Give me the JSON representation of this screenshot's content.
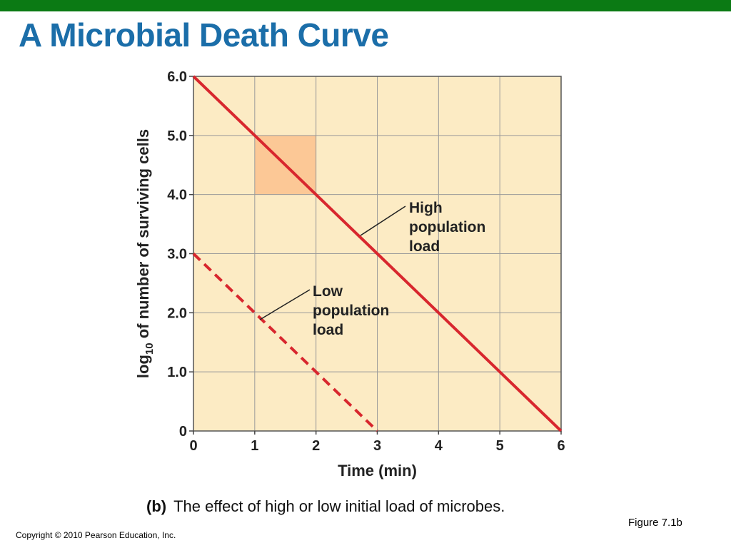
{
  "slide": {
    "title": "A Microbial Death Curve",
    "figure_label": "Figure 7.1b",
    "copyright": "Copyright © 2010 Pearson Education, Inc.",
    "accent_color": "#0b7a14",
    "title_color": "#1b6ea9"
  },
  "chart_data": {
    "type": "line",
    "xlabel": "Time (min)",
    "ylabel_prefix": "log",
    "ylabel_subscript": "10",
    "ylabel_rest": " of number of surviving cells",
    "xlim": [
      0,
      6
    ],
    "ylim": [
      0,
      6
    ],
    "x_ticks": [
      0,
      1,
      2,
      3,
      4,
      5,
      6
    ],
    "x_tick_labels": [
      "0",
      "1",
      "2",
      "3",
      "4",
      "5",
      "6"
    ],
    "y_ticks": [
      0,
      1,
      2,
      3,
      4,
      5,
      6
    ],
    "y_tick_labels": [
      "0",
      "1.0",
      "2.0",
      "3.0",
      "4.0",
      "5.0",
      "6.0"
    ],
    "grid": true,
    "background_color": "#fcebc4",
    "series": [
      {
        "name": "High population load",
        "label_lines": [
          "High",
          "population",
          "load"
        ],
        "color": "#d8272e",
        "style": "solid",
        "points": [
          [
            0,
            6
          ],
          [
            1,
            5
          ],
          [
            2,
            4
          ],
          [
            3,
            3
          ],
          [
            4,
            2
          ],
          [
            5,
            1
          ],
          [
            6,
            0
          ]
        ]
      },
      {
        "name": "Low population load",
        "label_lines": [
          "Low",
          "population",
          "load"
        ],
        "color": "#d8272e",
        "style": "dashed",
        "points": [
          [
            0,
            3
          ],
          [
            1,
            2
          ],
          [
            2,
            1
          ],
          [
            3,
            0
          ]
        ]
      }
    ],
    "highlight_region": {
      "x": [
        1,
        2
      ],
      "y": [
        4,
        5
      ],
      "color": "#fcc896"
    },
    "caption_prefix": "(b)",
    "caption_text": "The effect of high or low initial load of microbes."
  }
}
